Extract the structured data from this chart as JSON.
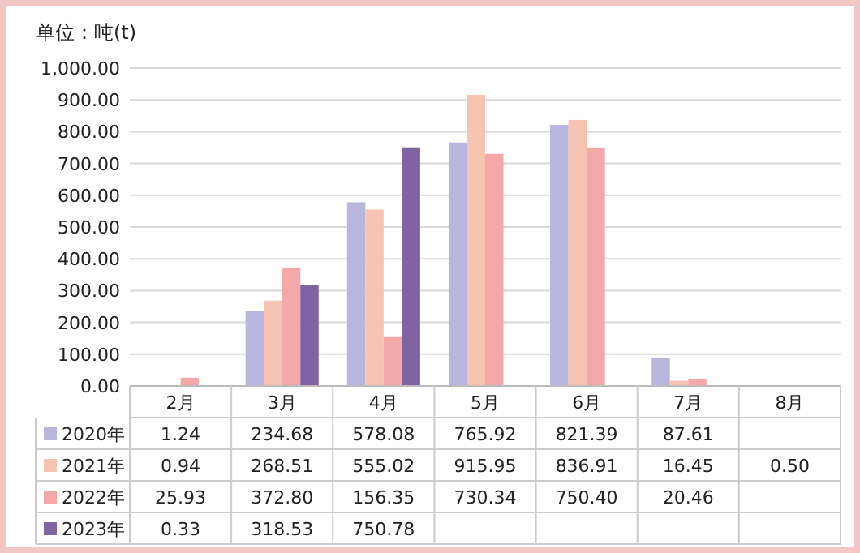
{
  "chart_data": {
    "type": "bar",
    "ylabel": "单位：吨(t)",
    "categories": [
      "2月",
      "3月",
      "4月",
      "5月",
      "6月",
      "7月",
      "8月"
    ],
    "ylim": [
      0,
      1000
    ],
    "yticks": [
      {
        "value": 0,
        "label": "0.00"
      },
      {
        "value": 100,
        "label": "100.00"
      },
      {
        "value": 200,
        "label": "200.00"
      },
      {
        "value": 300,
        "label": "300.00"
      },
      {
        "value": 400,
        "label": "400.00"
      },
      {
        "value": 500,
        "label": "500.00"
      },
      {
        "value": 600,
        "label": "600.00"
      },
      {
        "value": 700,
        "label": "700.00"
      },
      {
        "value": 800,
        "label": "800.00"
      },
      {
        "value": 900,
        "label": "900.00"
      },
      {
        "value": 1000,
        "label": "1,000.00"
      }
    ],
    "grid": "y",
    "legend": "bottom",
    "series": [
      {
        "name": "2020年",
        "color": "#b8b6dc",
        "values": [
          1.24,
          234.68,
          578.08,
          765.92,
          821.39,
          87.61,
          null
        ],
        "value_labels": [
          "1.24",
          "234.68",
          "578.08",
          "765.92",
          "821.39",
          "87.61",
          null
        ]
      },
      {
        "name": "2021年",
        "color": "#f7c4b4",
        "values": [
          0.94,
          268.51,
          555.02,
          915.95,
          836.91,
          16.45,
          0.5
        ],
        "value_labels": [
          "0.94",
          "268.51",
          "555.02",
          "915.95",
          "836.91",
          "16.45",
          "0.50"
        ]
      },
      {
        "name": "2022年",
        "color": "#f4a8aa",
        "values": [
          25.93,
          372.8,
          156.35,
          730.34,
          750.4,
          20.46,
          null
        ],
        "value_labels": [
          "25.93",
          "372.80",
          "156.35",
          "730.34",
          "750.40",
          "20.46",
          null
        ]
      },
      {
        "name": "2023年",
        "color": "#8064a2",
        "values": [
          0.33,
          318.53,
          750.78,
          null,
          null,
          null,
          null
        ],
        "value_labels": [
          "0.33",
          "318.53",
          "750.78",
          null,
          null,
          null,
          null
        ]
      }
    ]
  }
}
